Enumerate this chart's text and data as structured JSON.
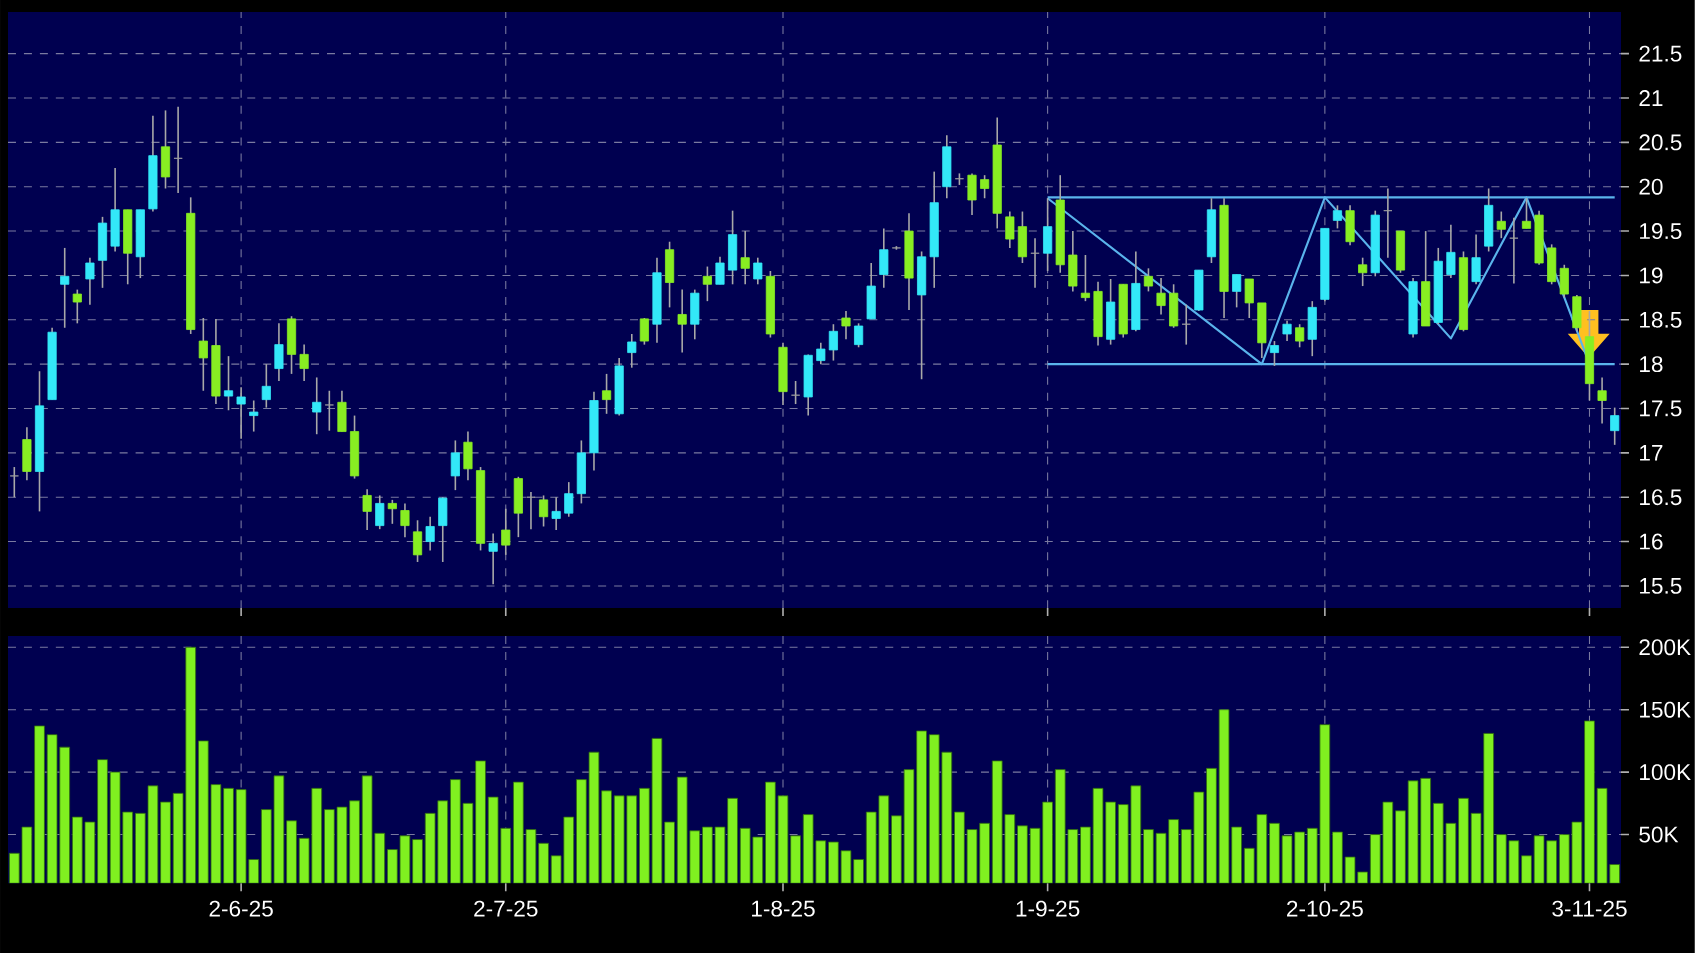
{
  "chart_data": [
    {
      "type": "candlestick",
      "categories": [
        null,
        null,
        null,
        null,
        null,
        null,
        null,
        null,
        null,
        null,
        null,
        null,
        null,
        null,
        null,
        null,
        null,
        null,
        null,
        null,
        null,
        null,
        null,
        null,
        null,
        null,
        null,
        null,
        null,
        null,
        null,
        null,
        null,
        null,
        null,
        null,
        null,
        null,
        null,
        null,
        null,
        null,
        null,
        null,
        null,
        null,
        null,
        null,
        null,
        null,
        null,
        null,
        null,
        null,
        null,
        null,
        null,
        null,
        null,
        null,
        null,
        null,
        null,
        null,
        null,
        null,
        null,
        null,
        null,
        null,
        null,
        null,
        null,
        null,
        null,
        null,
        null,
        null,
        null,
        null,
        null,
        null,
        null,
        null,
        null,
        null,
        null,
        null,
        null,
        null,
        null,
        null,
        null,
        null,
        null,
        null,
        null,
        null,
        null,
        null,
        null,
        null,
        null,
        null,
        null,
        null,
        null,
        null,
        null,
        null,
        null,
        null,
        null,
        null,
        null,
        null,
        null,
        null,
        null,
        null,
        null,
        null,
        null,
        null,
        null,
        null,
        null,
        null
      ],
      "ohlc": [
        [
          16.74,
          16.84,
          16.5,
          16.74
        ],
        [
          17.15,
          17.29,
          16.69,
          16.79
        ],
        [
          16.79,
          17.92,
          16.34,
          17.53
        ],
        [
          17.6,
          18.41,
          17.6,
          18.36
        ],
        [
          18.9,
          19.31,
          18.41,
          18.99
        ],
        [
          18.79,
          18.84,
          18.46,
          18.7
        ],
        [
          18.96,
          19.2,
          18.67,
          19.14
        ],
        [
          19.17,
          19.66,
          18.86,
          19.59
        ],
        [
          19.33,
          20.21,
          19.27,
          19.74
        ],
        [
          19.74,
          19.74,
          18.9,
          19.25
        ],
        [
          19.21,
          19.74,
          18.97,
          19.74
        ],
        [
          19.75,
          20.8,
          19.72,
          20.35
        ],
        [
          20.45,
          20.86,
          19.98,
          20.11
        ],
        [
          20.32,
          20.9,
          19.93,
          20.32
        ],
        [
          19.7,
          19.88,
          18.34,
          18.39
        ],
        [
          18.26,
          18.52,
          17.7,
          18.07
        ],
        [
          18.21,
          18.51,
          17.55,
          17.64
        ],
        [
          17.64,
          18.09,
          17.48,
          17.7
        ],
        [
          17.55,
          17.74,
          17.16,
          17.63
        ],
        [
          17.42,
          17.59,
          17.24,
          17.46
        ],
        [
          17.6,
          18.0,
          17.51,
          17.75
        ],
        [
          17.95,
          18.46,
          17.81,
          18.22
        ],
        [
          18.51,
          18.54,
          17.89,
          18.11
        ],
        [
          18.11,
          18.22,
          17.81,
          17.95
        ],
        [
          17.46,
          17.85,
          17.21,
          17.57
        ],
        [
          17.54,
          17.7,
          17.25,
          17.54
        ],
        [
          17.57,
          17.7,
          17.24,
          17.24
        ],
        [
          17.24,
          17.42,
          16.71,
          16.74
        ],
        [
          16.52,
          16.59,
          16.13,
          16.34
        ],
        [
          16.18,
          16.52,
          16.14,
          16.43
        ],
        [
          16.43,
          16.47,
          16.2,
          16.37
        ],
        [
          16.35,
          16.43,
          16.05,
          16.18
        ],
        [
          16.11,
          16.24,
          15.77,
          15.85
        ],
        [
          16.0,
          16.28,
          15.9,
          16.17
        ],
        [
          16.18,
          16.5,
          15.77,
          16.49
        ],
        [
          16.74,
          17.14,
          16.58,
          17.0
        ],
        [
          17.12,
          17.24,
          16.69,
          16.82
        ],
        [
          16.8,
          16.84,
          15.9,
          15.98
        ],
        [
          15.89,
          16.09,
          15.52,
          15.98
        ],
        [
          16.13,
          16.37,
          15.85,
          15.96
        ],
        [
          16.71,
          16.73,
          16.05,
          16.32
        ],
        [
          16.5,
          16.56,
          16.14,
          16.5
        ],
        [
          16.47,
          16.52,
          16.17,
          16.28
        ],
        [
          16.26,
          16.5,
          16.13,
          16.34
        ],
        [
          16.32,
          16.67,
          16.28,
          16.54
        ],
        [
          16.54,
          17.14,
          16.43,
          17.0
        ],
        [
          17.0,
          17.69,
          16.8,
          17.59
        ],
        [
          17.7,
          17.89,
          17.44,
          17.6
        ],
        [
          17.44,
          18.07,
          17.42,
          17.98
        ],
        [
          18.13,
          18.34,
          17.96,
          18.25
        ],
        [
          18.51,
          18.52,
          18.22,
          18.26
        ],
        [
          18.45,
          19.2,
          18.24,
          19.03
        ],
        [
          19.29,
          19.38,
          18.64,
          18.92
        ],
        [
          18.56,
          18.84,
          18.13,
          18.45
        ],
        [
          18.45,
          18.84,
          18.28,
          18.8
        ],
        [
          18.99,
          19.1,
          18.71,
          18.9
        ],
        [
          18.9,
          19.21,
          18.9,
          19.14
        ],
        [
          19.06,
          19.73,
          18.9,
          19.46
        ],
        [
          19.2,
          19.5,
          18.9,
          19.08
        ],
        [
          18.96,
          19.2,
          18.9,
          19.14
        ],
        [
          18.99,
          19.05,
          18.3,
          18.34
        ],
        [
          18.19,
          18.24,
          17.54,
          17.69
        ],
        [
          17.65,
          17.81,
          17.55,
          17.65
        ],
        [
          17.63,
          18.11,
          17.42,
          18.1
        ],
        [
          18.04,
          18.24,
          18.0,
          18.17
        ],
        [
          18.16,
          18.45,
          18.04,
          18.37
        ],
        [
          18.52,
          18.6,
          18.28,
          18.43
        ],
        [
          18.22,
          18.46,
          18.19,
          18.43
        ],
        [
          18.51,
          19.14,
          18.51,
          18.88
        ],
        [
          19.01,
          19.53,
          18.86,
          19.29
        ],
        [
          19.31,
          19.33,
          19.29,
          19.31
        ],
        [
          19.5,
          19.7,
          18.61,
          18.97
        ],
        [
          18.78,
          19.27,
          17.83,
          19.21
        ],
        [
          19.21,
          20.17,
          18.86,
          19.82
        ],
        [
          20.0,
          20.58,
          19.87,
          20.45
        ],
        [
          20.09,
          20.15,
          20.02,
          20.09
        ],
        [
          20.13,
          20.15,
          19.68,
          19.85
        ],
        [
          20.08,
          20.13,
          19.87,
          19.98
        ],
        [
          20.47,
          20.78,
          19.53,
          19.7
        ],
        [
          19.66,
          19.72,
          19.31,
          19.41
        ],
        [
          19.55,
          19.72,
          19.14,
          19.21
        ],
        [
          19.25,
          19.42,
          18.86,
          19.25
        ],
        [
          19.25,
          19.87,
          19.05,
          19.55
        ],
        [
          19.85,
          20.13,
          19.03,
          19.12
        ],
        [
          19.23,
          19.5,
          18.82,
          18.88
        ],
        [
          18.8,
          19.23,
          18.71,
          18.75
        ],
        [
          18.82,
          18.93,
          18.21,
          18.31
        ],
        [
          18.28,
          18.96,
          18.22,
          18.7
        ],
        [
          18.9,
          18.9,
          18.3,
          18.34
        ],
        [
          18.39,
          19.27,
          18.37,
          18.91
        ],
        [
          18.99,
          19.08,
          18.82,
          18.88
        ],
        [
          18.8,
          18.97,
          18.56,
          18.66
        ],
        [
          18.8,
          18.9,
          18.41,
          18.43
        ],
        [
          18.45,
          18.67,
          18.22,
          18.45
        ],
        [
          18.61,
          19.06,
          18.6,
          19.06
        ],
        [
          19.21,
          19.87,
          19.14,
          19.74
        ],
        [
          19.79,
          19.87,
          18.52,
          18.82
        ],
        [
          18.82,
          19.01,
          18.64,
          19.01
        ],
        [
          18.96,
          18.96,
          18.52,
          18.69
        ],
        [
          18.69,
          18.69,
          18.07,
          18.24
        ],
        [
          18.13,
          18.26,
          17.98,
          18.21
        ],
        [
          18.34,
          18.49,
          18.26,
          18.45
        ],
        [
          18.41,
          18.45,
          18.19,
          18.26
        ],
        [
          18.28,
          18.71,
          18.09,
          18.64
        ],
        [
          18.73,
          19.53,
          18.71,
          19.53
        ],
        [
          19.62,
          19.79,
          19.53,
          19.73
        ],
        [
          19.73,
          19.79,
          19.34,
          19.38
        ],
        [
          19.12,
          19.2,
          18.88,
          19.03
        ],
        [
          19.03,
          19.73,
          18.99,
          19.68
        ],
        [
          19.73,
          19.98,
          19.2,
          19.73
        ],
        [
          19.5,
          19.5,
          19.03,
          19.06
        ],
        [
          18.34,
          18.97,
          18.3,
          18.93
        ],
        [
          18.93,
          19.5,
          18.43,
          18.43
        ],
        [
          18.47,
          19.31,
          18.45,
          19.16
        ],
        [
          19.01,
          19.57,
          18.97,
          19.26
        ],
        [
          19.2,
          19.27,
          18.37,
          18.39
        ],
        [
          18.93,
          19.46,
          18.9,
          19.2
        ],
        [
          19.33,
          19.98,
          19.27,
          19.79
        ],
        [
          19.61,
          19.72,
          19.42,
          19.52
        ],
        [
          19.42,
          19.65,
          18.91,
          19.42
        ],
        [
          19.61,
          19.87,
          19.53,
          19.53
        ],
        [
          19.68,
          19.73,
          19.12,
          19.14
        ],
        [
          19.31,
          19.35,
          18.9,
          18.93
        ],
        [
          19.08,
          19.12,
          18.75,
          18.79
        ],
        [
          18.76,
          18.78,
          18.37,
          18.41
        ],
        [
          18.31,
          18.6,
          17.59,
          17.78
        ],
        [
          17.7,
          17.85,
          17.33,
          17.59
        ],
        [
          17.25,
          17.51,
          17.09,
          17.42
        ]
      ],
      "colors": [
        "#a0a0a0",
        "#88ee22",
        "#33e8f8",
        "#33e8f8",
        "#33e8f8",
        "#88ee22",
        "#33e8f8",
        "#33e8f8",
        "#33e8f8",
        "#88ee22",
        "#33e8f8",
        "#33e8f8",
        "#88ee22",
        "#a0a0a0",
        "#88ee22",
        "#88ee22",
        "#88ee22",
        "#33e8f8",
        "#33e8f8",
        "#33e8f8",
        "#33e8f8",
        "#33e8f8",
        "#88ee22",
        "#88ee22",
        "#33e8f8",
        "#a0a0a0",
        "#88ee22",
        "#88ee22",
        "#88ee22",
        "#33e8f8",
        "#88ee22",
        "#88ee22",
        "#88ee22",
        "#33e8f8",
        "#33e8f8",
        "#33e8f8",
        "#88ee22",
        "#88ee22",
        "#33e8f8",
        "#88ee22",
        "#88ee22",
        "#a0a0a0",
        "#88ee22",
        "#33e8f8",
        "#33e8f8",
        "#33e8f8",
        "#33e8f8",
        "#88ee22",
        "#33e8f8",
        "#33e8f8",
        "#88ee22",
        "#33e8f8",
        "#88ee22",
        "#88ee22",
        "#33e8f8",
        "#88ee22",
        "#33e8f8",
        "#33e8f8",
        "#88ee22",
        "#33e8f8",
        "#88ee22",
        "#88ee22",
        "#a0a0a0",
        "#33e8f8",
        "#33e8f8",
        "#33e8f8",
        "#88ee22",
        "#33e8f8",
        "#33e8f8",
        "#33e8f8",
        "#a0a0a0",
        "#88ee22",
        "#33e8f8",
        "#33e8f8",
        "#33e8f8",
        "#a0a0a0",
        "#88ee22",
        "#88ee22",
        "#88ee22",
        "#88ee22",
        "#88ee22",
        "#a0a0a0",
        "#33e8f8",
        "#88ee22",
        "#88ee22",
        "#88ee22",
        "#88ee22",
        "#33e8f8",
        "#88ee22",
        "#33e8f8",
        "#88ee22",
        "#88ee22",
        "#88ee22",
        "#a0a0a0",
        "#33e8f8",
        "#33e8f8",
        "#88ee22",
        "#33e8f8",
        "#88ee22",
        "#88ee22",
        "#33e8f8",
        "#33e8f8",
        "#88ee22",
        "#33e8f8",
        "#33e8f8",
        "#33e8f8",
        "#88ee22",
        "#88ee22",
        "#33e8f8",
        "#a0a0a0",
        "#88ee22",
        "#33e8f8",
        "#88ee22",
        "#33e8f8",
        "#33e8f8",
        "#88ee22",
        "#33e8f8",
        "#33e8f8",
        "#88ee22",
        "#a0a0a0",
        "#88ee22",
        "#88ee22",
        "#88ee22",
        "#88ee22",
        "#88ee22",
        "#88ee22",
        "#88ee22",
        "#33e8f8"
      ],
      "series": [
        {
          "type": "line",
          "color": "#5ab4ec",
          "values": [
            null,
            null,
            null,
            null,
            null,
            null,
            null,
            null,
            null,
            null,
            null,
            null,
            null,
            null,
            null,
            null,
            null,
            null,
            null,
            null,
            null,
            null,
            null,
            null,
            null,
            null,
            null,
            null,
            null,
            null,
            null,
            null,
            null,
            null,
            null,
            null,
            null,
            null,
            null,
            null,
            null,
            null,
            null,
            null,
            null,
            null,
            null,
            null,
            null,
            null,
            null,
            null,
            null,
            null,
            null,
            null,
            null,
            null,
            null,
            null,
            null,
            null,
            null,
            null,
            null,
            null,
            null,
            null,
            null,
            null,
            null,
            null,
            null,
            null,
            null,
            null,
            null,
            null,
            null,
            null,
            null,
            null,
            19.88,
            null,
            null,
            null,
            null,
            null,
            null,
            null,
            null,
            null,
            null,
            null,
            null,
            null,
            null,
            null,
            null,
            null,
            null,
            null,
            null,
            null,
            null,
            null,
            null,
            null,
            null,
            null,
            null,
            null,
            null,
            null,
            null,
            null,
            null,
            null,
            null,
            null,
            null,
            null,
            null,
            null,
            null,
            null,
            null,
            19.88
          ]
        },
        {
          "type": "line",
          "color": "#5ab4ec",
          "values": [
            null,
            null,
            null,
            null,
            null,
            null,
            null,
            null,
            null,
            null,
            null,
            null,
            null,
            null,
            null,
            null,
            null,
            null,
            null,
            null,
            null,
            null,
            null,
            null,
            null,
            null,
            null,
            null,
            null,
            null,
            null,
            null,
            null,
            null,
            null,
            null,
            null,
            null,
            null,
            null,
            null,
            null,
            null,
            null,
            null,
            null,
            null,
            null,
            null,
            null,
            null,
            null,
            null,
            null,
            null,
            null,
            null,
            null,
            null,
            null,
            null,
            null,
            null,
            null,
            null,
            null,
            null,
            null,
            null,
            null,
            null,
            null,
            null,
            null,
            null,
            null,
            null,
            null,
            null,
            null,
            null,
            null,
            18.0,
            null,
            null,
            null,
            null,
            null,
            null,
            null,
            null,
            null,
            null,
            null,
            null,
            null,
            null,
            null,
            null,
            null,
            null,
            null,
            null,
            null,
            null,
            null,
            null,
            null,
            null,
            null,
            null,
            null,
            null,
            null,
            null,
            null,
            null,
            null,
            null,
            null,
            null,
            null,
            null,
            null,
            null,
            null,
            null,
            18.0
          ]
        },
        {
          "type": "line",
          "color": "#5ab4ec",
          "values": [
            null,
            null,
            null,
            null,
            null,
            null,
            null,
            null,
            null,
            null,
            null,
            null,
            null,
            null,
            null,
            null,
            null,
            null,
            null,
            null,
            null,
            null,
            null,
            null,
            null,
            null,
            null,
            null,
            null,
            null,
            null,
            null,
            null,
            null,
            null,
            null,
            null,
            null,
            null,
            null,
            null,
            null,
            null,
            null,
            null,
            null,
            null,
            null,
            null,
            null,
            null,
            null,
            null,
            null,
            null,
            null,
            null,
            null,
            null,
            null,
            null,
            null,
            null,
            null,
            null,
            null,
            null,
            null,
            null,
            null,
            null,
            null,
            null,
            null,
            null,
            null,
            null,
            null,
            null,
            null,
            null,
            null,
            19.87,
            null,
            null,
            null,
            null,
            null,
            null,
            null,
            null,
            null,
            null,
            null,
            null,
            null,
            null,
            null,
            null,
            18.0,
            null,
            null,
            null,
            null,
            19.88,
            null,
            null,
            null,
            null,
            null,
            null,
            null,
            null,
            null,
            18.29,
            null,
            null,
            null,
            null,
            null,
            19.88,
            null,
            null,
            null,
            null,
            18.0,
            null,
            null
          ]
        }
      ],
      "ylim": [
        15.25,
        21.97
      ],
      "yticks": [
        15.5,
        16,
        16.5,
        17,
        17.5,
        18,
        18.5,
        19,
        19.5,
        20,
        20.5,
        21,
        21.5
      ],
      "grid": true,
      "tick_labels": "y"
    },
    {
      "type": "bar",
      "categories": [
        null,
        null,
        null,
        null,
        null,
        null,
        null,
        null,
        null,
        null,
        null,
        null,
        null,
        null,
        null,
        null,
        null,
        null,
        "2-6-25",
        null,
        null,
        null,
        null,
        null,
        null,
        null,
        null,
        null,
        null,
        null,
        null,
        null,
        null,
        null,
        null,
        null,
        null,
        null,
        null,
        "2-7-25",
        null,
        null,
        null,
        null,
        null,
        null,
        null,
        null,
        null,
        null,
        null,
        null,
        null,
        null,
        null,
        null,
        null,
        null,
        null,
        null,
        null,
        "1-8-25",
        null,
        null,
        null,
        null,
        null,
        null,
        null,
        null,
        null,
        null,
        null,
        null,
        null,
        null,
        null,
        null,
        null,
        null,
        null,
        null,
        "1-9-25",
        null,
        null,
        null,
        null,
        null,
        null,
        null,
        null,
        null,
        null,
        null,
        null,
        null,
        null,
        null,
        null,
        null,
        null,
        null,
        null,
        null,
        "2-10-25",
        null,
        null,
        null,
        null,
        null,
        null,
        null,
        null,
        null,
        null,
        null,
        null,
        null,
        null,
        null,
        null,
        null,
        null,
        null,
        null,
        "3-11-25",
        null,
        null
      ],
      "values": [
        35,
        56,
        137,
        130,
        120,
        64,
        60,
        110,
        100,
        68,
        67,
        89,
        76,
        83,
        200,
        125,
        90,
        87,
        86,
        30,
        70,
        97,
        61,
        47,
        87,
        70,
        72,
        77,
        97,
        51,
        38,
        49,
        46,
        67,
        77,
        94,
        75,
        109,
        80,
        55,
        92,
        54,
        43,
        33,
        64,
        94,
        116,
        85,
        81,
        81,
        87,
        127,
        60,
        96,
        53,
        56,
        56,
        79,
        55,
        48,
        92,
        81,
        49,
        66,
        45,
        44,
        37,
        30,
        68,
        81,
        65,
        102,
        133,
        130,
        116,
        68,
        54,
        59,
        109,
        66,
        57,
        55,
        76,
        102,
        54,
        56,
        87,
        76,
        74,
        89,
        54,
        51,
        62,
        54,
        84,
        103,
        150,
        56,
        39,
        66,
        59,
        49,
        52,
        55,
        138,
        52,
        32,
        20,
        50,
        76,
        69,
        93,
        95,
        75,
        59,
        79,
        67,
        131,
        50,
        45,
        33,
        49,
        45,
        50,
        60,
        141,
        87,
        26
      ],
      "color": "#80f020",
      "ylim": [
        11,
        209
      ],
      "yticks": [
        {
          "value": 50,
          "label": "50K"
        },
        {
          "value": 100,
          "label": "100K"
        },
        {
          "value": 150,
          "label": "150K"
        },
        {
          "value": 200,
          "label": "200K"
        }
      ],
      "grid": true
    }
  ]
}
